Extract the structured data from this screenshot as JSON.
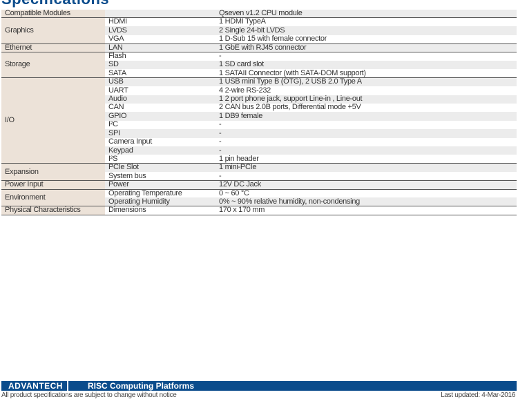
{
  "title": "Specifications",
  "specs": [
    {
      "category": "Compatible Modules",
      "rows": [
        [
          "",
          "Qseven v1.2 CPU module"
        ]
      ]
    },
    {
      "category": "Graphics",
      "rows": [
        [
          "HDMI",
          "1 HDMI TypeA"
        ],
        [
          "LVDS",
          "2 Single 24-bit LVDS"
        ],
        [
          "VGA",
          "1 D-Sub 15 with female connector"
        ]
      ]
    },
    {
      "category": "Ethernet",
      "rows": [
        [
          "LAN",
          "1 GbE with RJ45 connector"
        ]
      ]
    },
    {
      "category": "Storage",
      "rows": [
        [
          "Flash",
          "-"
        ],
        [
          "SD",
          "1 SD card slot"
        ],
        [
          "SATA",
          "1 SATAII Connector (with SATA-DOM support)"
        ]
      ]
    },
    {
      "category": "I/O",
      "rows": [
        [
          "USB",
          "1 USB mini Type B (OTG), 2 USB 2.0 Type A"
        ],
        [
          "UART",
          "4 2-wire  RS-232"
        ],
        [
          "Audio",
          "1 2 port phone jack, support Line-in , Line-out"
        ],
        [
          "CAN",
          "2 CAN bus 2.0B ports, Differential mode +5V"
        ],
        [
          "GPIO",
          "1 DB9 female"
        ],
        [
          "I²C",
          "-"
        ],
        [
          "SPI",
          "-"
        ],
        [
          "Camera Input",
          "-"
        ],
        [
          "Keypad",
          "-"
        ],
        [
          "I²S",
          "1 pin header"
        ]
      ]
    },
    {
      "category": "Expansion",
      "rows": [
        [
          "PCIe Slot",
          "1 mini-PCIe"
        ],
        [
          "System bus",
          "-"
        ]
      ]
    },
    {
      "category": "Power Input",
      "rows": [
        [
          "Power",
          "12V DC Jack"
        ]
      ]
    },
    {
      "category": "Environment",
      "rows": [
        [
          "Operating Temperature",
          "0 ~ 60 °C"
        ],
        [
          "Operating Humidity",
          "0% ~ 90% relative humidity, non-condensing"
        ]
      ]
    },
    {
      "category": "Physical Characteristics",
      "rows": [
        [
          "Dimensions",
          "170 x 170 mm"
        ]
      ]
    }
  ],
  "footer": {
    "logo": "ADVANTECH",
    "bar_title": "RISC Computing Platforms",
    "notice": "All product specifications are subject to change without notice",
    "updated": "Last updated: 4-Mar-2016"
  },
  "colors": {
    "brand": "#0b4c8c",
    "category_bg": "#ece2d8",
    "stripe": "#ececec"
  }
}
